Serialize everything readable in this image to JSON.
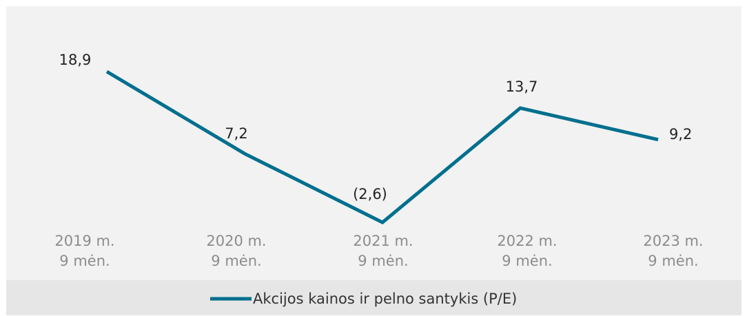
{
  "chart_data": {
    "type": "line",
    "categories": [
      "2019 m.\n9 mėn.",
      "2020 m.\n9 mėn.",
      "2021 m.\n9 mėn.",
      "2022 m.\n9 mėn.",
      "2023 m.\n9 mėn."
    ],
    "series": [
      {
        "name": "Akcijos kainos ir pelno santykis (P/E)",
        "color": "#006f8e",
        "values": [
          18.9,
          7.2,
          -2.6,
          13.7,
          9.2
        ],
        "value_labels": [
          "18,9",
          "7,2",
          "(2,6)",
          "13,7",
          "9,2"
        ]
      }
    ],
    "legend": "bottom"
  }
}
